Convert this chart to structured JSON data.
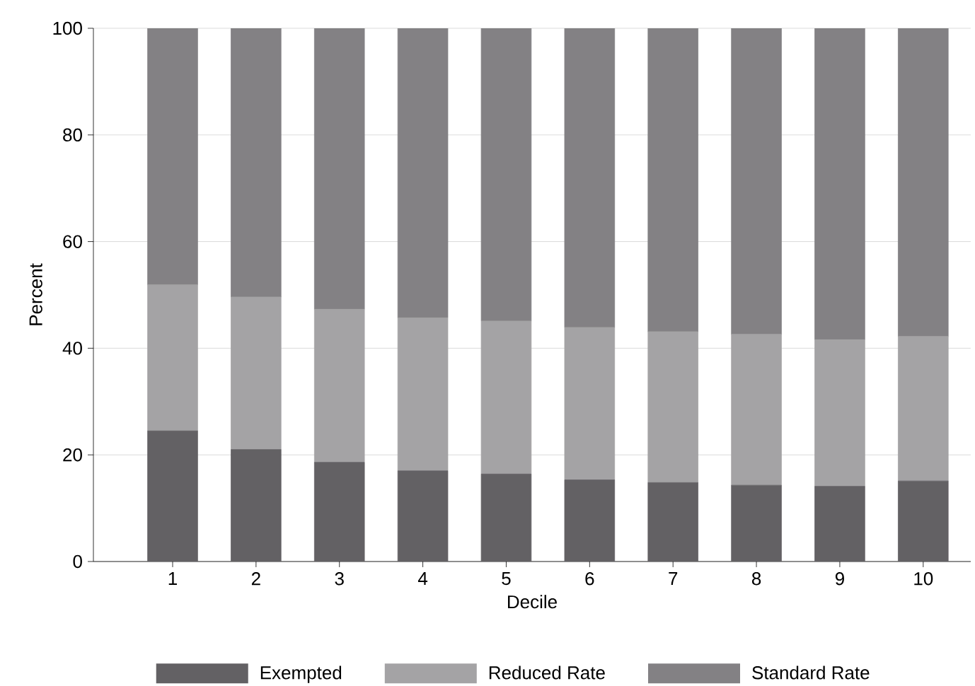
{
  "chart_data": {
    "type": "bar",
    "stacked": true,
    "xlabel": "Decile",
    "ylabel": "Percent",
    "categories": [
      "1",
      "2",
      "3",
      "4",
      "5",
      "6",
      "7",
      "8",
      "9",
      "10"
    ],
    "series": [
      {
        "name": "Exempted",
        "color": "#636164",
        "values": [
          24.5,
          21.0,
          18.6,
          17.0,
          16.4,
          15.3,
          14.8,
          14.3,
          14.1,
          15.1
        ]
      },
      {
        "name": "Reduced Rate",
        "color": "#a4a3a5",
        "values": [
          27.4,
          28.6,
          28.7,
          28.7,
          28.7,
          28.6,
          28.3,
          28.3,
          27.5,
          27.1
        ]
      },
      {
        "name": "Standard Rate",
        "color": "#838184",
        "values": [
          48.1,
          50.4,
          52.7,
          54.3,
          54.9,
          56.1,
          56.9,
          57.4,
          58.4,
          57.8
        ]
      }
    ],
    "ylim": [
      0,
      100
    ],
    "yticks": [
      0,
      20,
      40,
      60,
      80,
      100
    ],
    "grid": "y",
    "legend": "bottom"
  }
}
